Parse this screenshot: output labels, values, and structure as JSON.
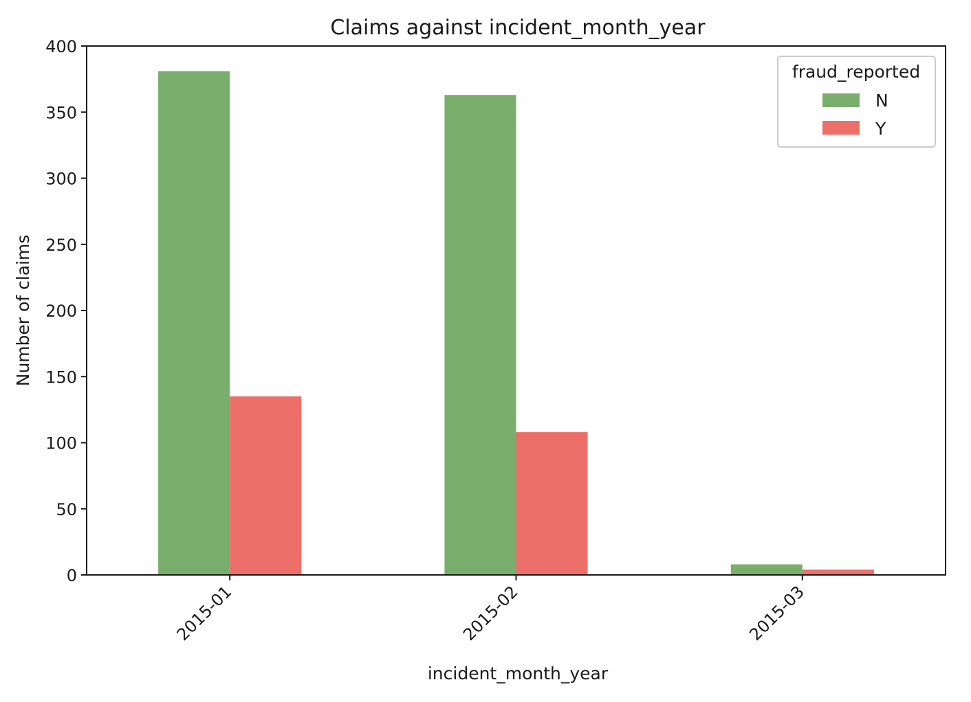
{
  "chart_data": {
    "type": "bar",
    "title": "Claims against incident_month_year",
    "xlabel": "incident_month_year",
    "ylabel": "Number of claims",
    "categories": [
      "2015-01",
      "2015-02",
      "2015-03"
    ],
    "series": [
      {
        "name": "N",
        "values": [
          381,
          363,
          8
        ],
        "color": "#7aae6d"
      },
      {
        "name": "Y",
        "values": [
          135,
          108,
          4
        ],
        "color": "#ec6f69"
      }
    ],
    "ylim": [
      0,
      400
    ],
    "yticks": [
      0,
      50,
      100,
      150,
      200,
      250,
      300,
      350,
      400
    ],
    "grid": false,
    "legend": {
      "title": "fraud_reported",
      "position": "top-right"
    },
    "xtick_rotation": 45
  }
}
